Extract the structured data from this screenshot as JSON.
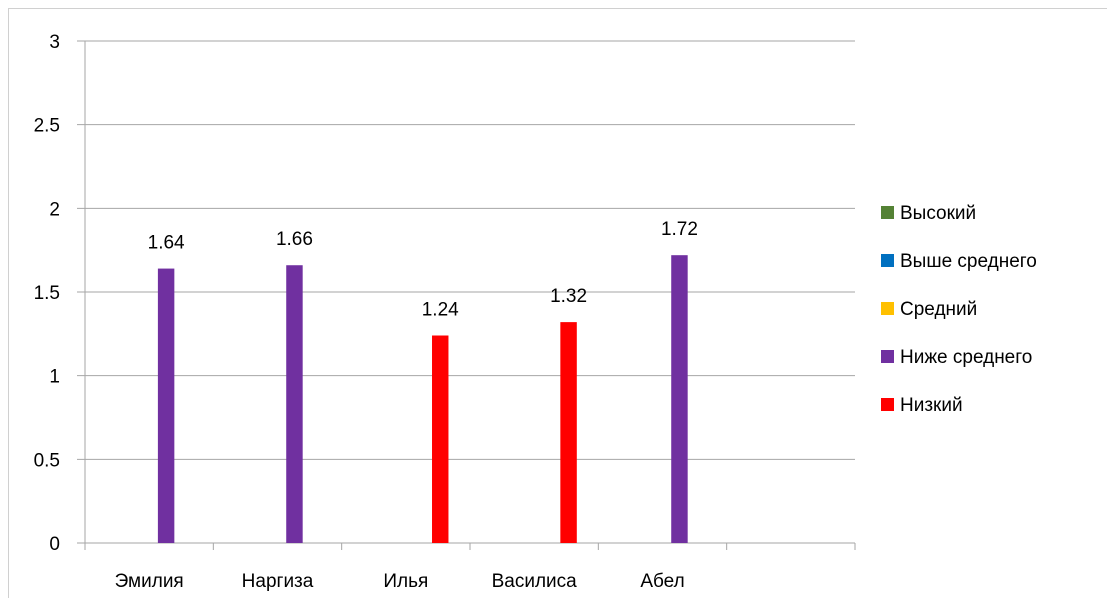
{
  "chart_data": {
    "type": "bar",
    "categories": [
      "Эмилия",
      "Наргиза",
      "Илья",
      "Василиса",
      "Абел"
    ],
    "ylim": [
      0,
      3
    ],
    "yticks": [
      "0",
      "0.5",
      "1",
      "1.5",
      "2",
      "2.5",
      "3"
    ],
    "ytick_values": [
      0,
      0.5,
      1,
      1.5,
      2,
      2.5,
      3
    ],
    "grid": true,
    "legend_position": "right",
    "series": [
      {
        "name": "Высокий",
        "color": "#548235",
        "values": [
          null,
          null,
          null,
          null,
          null
        ]
      },
      {
        "name": "Выше среднего",
        "color": "#0070C0",
        "values": [
          null,
          null,
          null,
          null,
          null
        ]
      },
      {
        "name": "Средний",
        "color": "#FFC000",
        "values": [
          null,
          null,
          null,
          null,
          null
        ]
      },
      {
        "name": "Ниже среднего",
        "color": "#7030A0",
        "values": [
          1.64,
          1.66,
          null,
          null,
          1.72
        ]
      },
      {
        "name": "Низкий",
        "color": "#FF0000",
        "values": [
          null,
          null,
          1.24,
          1.32,
          null
        ]
      }
    ],
    "data_labels": [
      "1.64",
      "1.66",
      "1.24",
      "1.32",
      "1.72"
    ]
  }
}
